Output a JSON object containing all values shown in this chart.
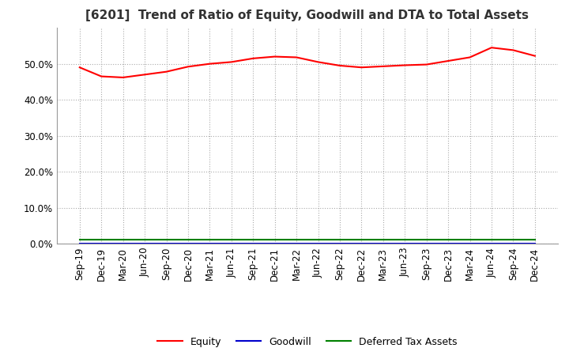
{
  "title": "[6201]  Trend of Ratio of Equity, Goodwill and DTA to Total Assets",
  "x_labels": [
    "Sep-19",
    "Dec-19",
    "Mar-20",
    "Jun-20",
    "Sep-20",
    "Dec-20",
    "Mar-21",
    "Jun-21",
    "Sep-21",
    "Dec-21",
    "Mar-22",
    "Jun-22",
    "Sep-22",
    "Dec-22",
    "Mar-23",
    "Jun-23",
    "Sep-23",
    "Dec-23",
    "Mar-24",
    "Jun-24",
    "Sep-24",
    "Dec-24"
  ],
  "equity": [
    0.49,
    0.465,
    0.462,
    0.47,
    0.478,
    0.492,
    0.5,
    0.505,
    0.515,
    0.52,
    0.518,
    0.505,
    0.495,
    0.49,
    0.493,
    0.496,
    0.498,
    0.508,
    0.518,
    0.545,
    0.538,
    0.522
  ],
  "goodwill": [
    0.0005,
    0.0005,
    0.0005,
    0.0005,
    0.0005,
    0.0005,
    0.0005,
    0.0005,
    0.0005,
    0.0005,
    0.0005,
    0.0005,
    0.0005,
    0.0005,
    0.0005,
    0.0005,
    0.0005,
    0.0005,
    0.0005,
    0.0005,
    0.0005,
    0.0005
  ],
  "dta": [
    0.01,
    0.01,
    0.01,
    0.01,
    0.01,
    0.01,
    0.01,
    0.01,
    0.01,
    0.01,
    0.01,
    0.01,
    0.01,
    0.01,
    0.01,
    0.01,
    0.01,
    0.01,
    0.01,
    0.01,
    0.01,
    0.01
  ],
  "equity_color": "#ff0000",
  "goodwill_color": "#0000cc",
  "dta_color": "#008000",
  "ylim_min": 0.0,
  "ylim_max": 0.6,
  "yticks": [
    0.0,
    0.1,
    0.2,
    0.3,
    0.4,
    0.5
  ],
  "background_color": "#ffffff",
  "plot_bg_color": "#ffffff",
  "grid_color": "#aaaaaa",
  "title_fontsize": 11,
  "tick_fontsize": 8.5
}
